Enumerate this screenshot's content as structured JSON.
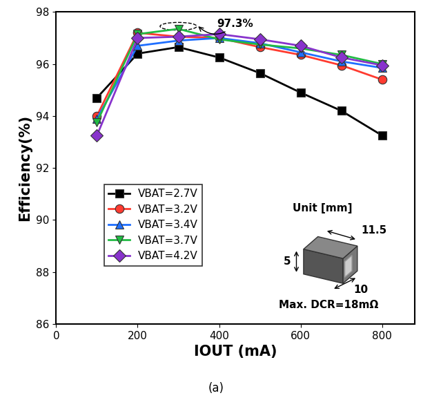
{
  "chart_data": {
    "type": "line",
    "x_label": "IOUT (mA)",
    "y_label": "Efficiency(%)",
    "caption": "(a)",
    "xlim": [
      0,
      880
    ],
    "xticks": [
      0,
      200,
      400,
      600,
      800
    ],
    "ylim": [
      86,
      98
    ],
    "yticks": [
      86,
      88,
      90,
      92,
      94,
      96,
      98
    ],
    "legend": "lower left",
    "peak_annotation": {
      "text": "97.3%",
      "x": 300,
      "y": 97.35
    },
    "inset_texts": [
      "Unit [mm]",
      "11.5",
      "5",
      "10",
      "Max. DCR=18mΩ"
    ],
    "x": [
      100,
      200,
      300,
      400,
      500,
      600,
      700,
      800
    ],
    "series": [
      {
        "name": "VBAT=2.7V",
        "color": "#000000",
        "marker": "s",
        "values": [
          94.7,
          96.4,
          96.65,
          96.25,
          95.65,
          94.9,
          94.2,
          93.25
        ]
      },
      {
        "name": "VBAT=3.2V",
        "color": "#ff3b30",
        "marker": "o",
        "values": [
          94.0,
          97.2,
          97.05,
          97.0,
          96.65,
          96.35,
          95.95,
          95.4
        ]
      },
      {
        "name": "VBAT=3.4V",
        "color": "#1f6fff",
        "marker": "^",
        "values": [
          93.9,
          96.7,
          96.9,
          97.0,
          96.8,
          96.45,
          96.1,
          95.85
        ]
      },
      {
        "name": "VBAT=3.7V",
        "color": "#22bb44",
        "marker": "v",
        "values": [
          93.75,
          97.15,
          97.35,
          96.95,
          96.75,
          96.6,
          96.35,
          96.0
        ]
      },
      {
        "name": "VBAT=4.2V",
        "color": "#8833cc",
        "marker": "D",
        "values": [
          93.25,
          97.0,
          97.05,
          97.15,
          96.95,
          96.7,
          96.25,
          95.95
        ]
      }
    ]
  }
}
